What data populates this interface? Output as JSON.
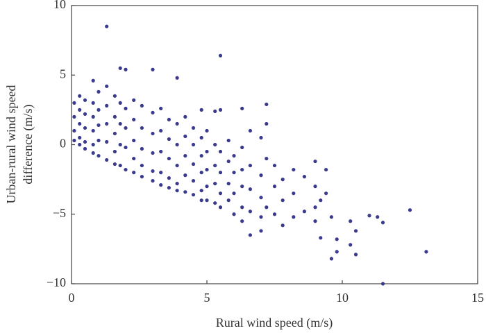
{
  "chart_data": {
    "type": "scatter",
    "xlabel": "Rural wind speed (m/s)",
    "ylabel": [
      "Urban-rural wind speed",
      "difference (m/s)"
    ],
    "color": "#3a3a8e",
    "xlim": [
      0,
      15
    ],
    "xticks": [
      0,
      5,
      10,
      15
    ],
    "ylim": [
      -10,
      10
    ],
    "yticks": [
      {
        "value": -10,
        "label": "−10"
      },
      {
        "value": -5,
        "label": "−5"
      },
      0,
      5,
      10
    ],
    "x": [
      0.1,
      0.1,
      0.1,
      0.1,
      0.3,
      0.3,
      0.3,
      0.3,
      0.3,
      0.5,
      0.5,
      0.5,
      0.5,
      0.5,
      0.8,
      0.8,
      0.8,
      0.8,
      0.8,
      0.8,
      1.0,
      1.0,
      1.0,
      1.0,
      1.0,
      1.3,
      1.3,
      1.3,
      1.3,
      1.3,
      1.3,
      1.6,
      1.6,
      1.6,
      1.6,
      1.6,
      1.8,
      1.8,
      1.8,
      1.8,
      1.8,
      2.0,
      2.0,
      2.0,
      2.0,
      2.0,
      2.3,
      2.3,
      2.3,
      2.3,
      2.3,
      2.6,
      2.6,
      2.6,
      2.6,
      2.6,
      3.0,
      3.0,
      3.0,
      3.0,
      3.0,
      3.0,
      3.3,
      3.3,
      3.3,
      3.3,
      3.3,
      3.6,
      3.6,
      3.6,
      3.6,
      3.6,
      3.9,
      3.9,
      3.9,
      3.9,
      3.9,
      3.9,
      4.2,
      4.2,
      4.2,
      4.2,
      4.2,
      4.5,
      4.5,
      4.5,
      4.5,
      4.5,
      4.8,
      4.8,
      4.8,
      4.8,
      4.8,
      4.8,
      5.0,
      5.0,
      5.0,
      5.0,
      5.0,
      5.3,
      5.3,
      5.3,
      5.3,
      5.3,
      5.5,
      5.5,
      5.5,
      5.5,
      5.5,
      5.5,
      5.8,
      5.8,
      5.8,
      5.8,
      6.0,
      6.0,
      6.0,
      6.0,
      6.3,
      6.3,
      6.3,
      6.3,
      6.3,
      6.3,
      6.6,
      6.6,
      6.6,
      6.6,
      6.6,
      7.0,
      7.0,
      7.0,
      7.0,
      7.0,
      7.2,
      7.2,
      7.2,
      7.2,
      7.5,
      7.5,
      7.5,
      7.8,
      7.8,
      7.8,
      8.2,
      8.2,
      8.2,
      8.6,
      8.6,
      9.0,
      9.0,
      9.0,
      9.0,
      9.2,
      9.2,
      9.4,
      9.4,
      9.6,
      9.6,
      9.8,
      9.8,
      10.3,
      10.3,
      10.5,
      10.5,
      11.0,
      11.3,
      11.5,
      11.5,
      12.5,
      13.1
    ],
    "values": [
      3.0,
      2.0,
      1.0,
      0.3,
      3.5,
      2.5,
      1.5,
      0.5,
      0,
      3.2,
      2.2,
      1.2,
      0.2,
      -0.3,
      4.6,
      3.0,
      2.0,
      1.0,
      0,
      -0.6,
      3.8,
      2.5,
      1.4,
      0.3,
      -0.8,
      8.5,
      4.2,
      2.8,
      1.5,
      0.2,
      -1.1,
      3.5,
      2.0,
      0.8,
      -0.5,
      -1.4,
      5.5,
      3.0,
      1.5,
      0,
      -1.5,
      5.4,
      2.6,
      1.2,
      -0.2,
      -1.8,
      3.2,
      1.8,
      0.3,
      -1.0,
      -2.0,
      2.8,
      1.2,
      -0.3,
      -1.5,
      -2.3,
      5.4,
      2.3,
      0.8,
      -0.6,
      -1.9,
      -2.6,
      2.6,
      1.0,
      -0.5,
      -2.0,
      -2.9,
      1.8,
      0.4,
      -1.0,
      -2.4,
      -3.1,
      4.8,
      1.5,
      0,
      -1.5,
      -2.8,
      -3.3,
      2.0,
      0.6,
      -0.8,
      -2.2,
      -3.4,
      1.2,
      0,
      -1.4,
      -2.6,
      -3.6,
      2.5,
      0.5,
      -0.8,
      -2.0,
      -3.3,
      -4.0,
      1.0,
      -0.5,
      -1.8,
      -3.0,
      -4.0,
      2.4,
      0,
      -1.5,
      -2.8,
      -4.2,
      6.4,
      2.5,
      -0.5,
      -2.0,
      -3.5,
      -4.5,
      0.3,
      -1.2,
      -2.8,
      -4.0,
      -0.8,
      -2.0,
      -3.5,
      -5.0,
      2.6,
      -0.2,
      -1.8,
      -3.0,
      -4.5,
      -5.5,
      1.0,
      -1.5,
      -3.2,
      -4.8,
      -6.5,
      0.5,
      -2.2,
      -3.8,
      -5.2,
      -6.2,
      2.9,
      1.5,
      -1.0,
      -4.5,
      -1.5,
      -3.0,
      -5.0,
      -2.5,
      -4.0,
      -5.8,
      -1.8,
      -3.5,
      -5.2,
      -2.3,
      -4.8,
      -1.2,
      -3.0,
      -4.5,
      -5.5,
      -4.0,
      -6.7,
      -1.8,
      -3.5,
      -8.2,
      -5.2,
      -7.7,
      -6.8,
      -5.5,
      -7.2,
      -6.2,
      -7.9,
      -5.1,
      -5.2,
      -10.0,
      -5.6,
      -4.7,
      -7.7
    ]
  }
}
